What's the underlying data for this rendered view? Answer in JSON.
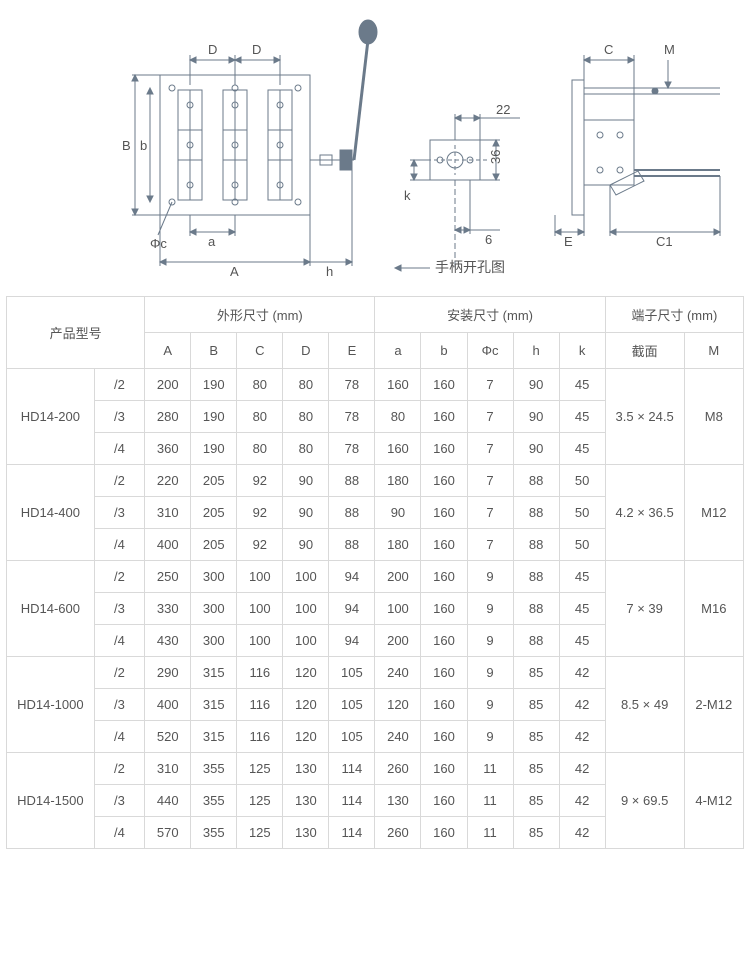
{
  "diagram": {
    "labels": {
      "A": "A",
      "B": "B",
      "C": "C",
      "D": "D",
      "E": "E",
      "M": "M",
      "a": "a",
      "b": "b",
      "h": "h",
      "k": "k",
      "phiC": "Φc",
      "C1": "C1",
      "dim22": "22",
      "dim36": "36",
      "dim6": "6",
      "caption": "手柄开孔图"
    },
    "stroke": "#6b7a8a",
    "thinStroke": "#6b7a8a",
    "font": "14",
    "smallFont": "12"
  },
  "table": {
    "headers": {
      "model": "产品型号",
      "group1": "外形尺寸 (mm)",
      "group2": "安装尺寸 (mm)",
      "group3": "端子尺寸 (mm)",
      "A": "A",
      "B": "B",
      "C": "C",
      "D": "D",
      "E": "E",
      "a": "a",
      "b": "b",
      "phiC": "Φc",
      "h": "h",
      "k": "k",
      "section": "截面",
      "M": "M"
    },
    "groups": [
      {
        "model": "HD14-200",
        "section": "3.5 × 24.5",
        "M": "M8",
        "rows": [
          {
            "v": "/2",
            "A": "200",
            "B": "190",
            "C": "80",
            "D": "80",
            "E": "78",
            "a": "160",
            "b": "160",
            "phiC": "7",
            "h": "90",
            "k": "45"
          },
          {
            "v": "/3",
            "A": "280",
            "B": "190",
            "C": "80",
            "D": "80",
            "E": "78",
            "a": "80",
            "b": "160",
            "phiC": "7",
            "h": "90",
            "k": "45"
          },
          {
            "v": "/4",
            "A": "360",
            "B": "190",
            "C": "80",
            "D": "80",
            "E": "78",
            "a": "160",
            "b": "160",
            "phiC": "7",
            "h": "90",
            "k": "45"
          }
        ]
      },
      {
        "model": "HD14-400",
        "section": "4.2 × 36.5",
        "M": "M12",
        "rows": [
          {
            "v": "/2",
            "A": "220",
            "B": "205",
            "C": "92",
            "D": "90",
            "E": "88",
            "a": "180",
            "b": "160",
            "phiC": "7",
            "h": "88",
            "k": "50"
          },
          {
            "v": "/3",
            "A": "310",
            "B": "205",
            "C": "92",
            "D": "90",
            "E": "88",
            "a": "90",
            "b": "160",
            "phiC": "7",
            "h": "88",
            "k": "50"
          },
          {
            "v": "/4",
            "A": "400",
            "B": "205",
            "C": "92",
            "D": "90",
            "E": "88",
            "a": "180",
            "b": "160",
            "phiC": "7",
            "h": "88",
            "k": "50"
          }
        ]
      },
      {
        "model": "HD14-600",
        "section": "7 × 39",
        "M": "M16",
        "rows": [
          {
            "v": "/2",
            "A": "250",
            "B": "300",
            "C": "100",
            "D": "100",
            "E": "94",
            "a": "200",
            "b": "160",
            "phiC": "9",
            "h": "88",
            "k": "45"
          },
          {
            "v": "/3",
            "A": "330",
            "B": "300",
            "C": "100",
            "D": "100",
            "E": "94",
            "a": "100",
            "b": "160",
            "phiC": "9",
            "h": "88",
            "k": "45"
          },
          {
            "v": "/4",
            "A": "430",
            "B": "300",
            "C": "100",
            "D": "100",
            "E": "94",
            "a": "200",
            "b": "160",
            "phiC": "9",
            "h": "88",
            "k": "45"
          }
        ]
      },
      {
        "model": "HD14-1000",
        "section": "8.5 × 49",
        "M": "2-M12",
        "rows": [
          {
            "v": "/2",
            "A": "290",
            "B": "315",
            "C": "116",
            "D": "120",
            "E": "105",
            "a": "240",
            "b": "160",
            "phiC": "9",
            "h": "85",
            "k": "42"
          },
          {
            "v": "/3",
            "A": "400",
            "B": "315",
            "C": "116",
            "D": "120",
            "E": "105",
            "a": "120",
            "b": "160",
            "phiC": "9",
            "h": "85",
            "k": "42"
          },
          {
            "v": "/4",
            "A": "520",
            "B": "315",
            "C": "116",
            "D": "120",
            "E": "105",
            "a": "240",
            "b": "160",
            "phiC": "9",
            "h": "85",
            "k": "42"
          }
        ]
      },
      {
        "model": "HD14-1500",
        "section": "9 × 69.5",
        "M": "4-M12",
        "rows": [
          {
            "v": "/2",
            "A": "310",
            "B": "355",
            "C": "125",
            "D": "130",
            "E": "114",
            "a": "260",
            "b": "160",
            "phiC": "11",
            "h": "85",
            "k": "42"
          },
          {
            "v": "/3",
            "A": "440",
            "B": "355",
            "C": "125",
            "D": "130",
            "E": "114",
            "a": "130",
            "b": "160",
            "phiC": "11",
            "h": "85",
            "k": "42"
          },
          {
            "v": "/4",
            "A": "570",
            "B": "355",
            "C": "125",
            "D": "130",
            "E": "114",
            "a": "260",
            "b": "160",
            "phiC": "11",
            "h": "85",
            "k": "42"
          }
        ]
      }
    ]
  }
}
